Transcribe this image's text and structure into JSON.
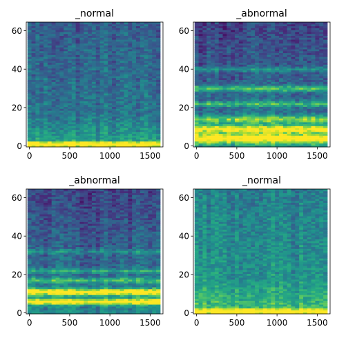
{
  "chart_data": [
    {
      "type": "heatmap",
      "title": "_normal",
      "x_ticks": [
        0,
        500,
        1000,
        1500
      ],
      "y_ticks": [
        0,
        20,
        40,
        60
      ],
      "xlim": [
        -40,
        1660
      ],
      "ylim": [
        -0.5,
        64.5
      ],
      "n_freq_bins": 65,
      "n_time_frames": 33,
      "colormap": "viridis",
      "grid": false,
      "pattern": "normal",
      "bands": [
        {
          "freq": 1,
          "strength": 1.0,
          "width": 1.2
        }
      ]
    },
    {
      "type": "heatmap",
      "title": "_abnormal",
      "x_ticks": [
        0,
        500,
        1000,
        1500
      ],
      "y_ticks": [
        0,
        20,
        40,
        60
      ],
      "xlim": [
        -40,
        1660
      ],
      "ylim": [
        -0.5,
        64.5
      ],
      "n_freq_bins": 65,
      "n_time_frames": 33,
      "colormap": "viridis",
      "grid": false,
      "pattern": "abnormal",
      "bands": [
        {
          "freq": 4,
          "strength": 0.95,
          "width": 2.5
        },
        {
          "freq": 9,
          "strength": 0.85,
          "width": 2.0
        },
        {
          "freq": 14,
          "strength": 0.6,
          "width": 2.0
        },
        {
          "freq": 22,
          "strength": 0.45,
          "width": 1.5
        },
        {
          "freq": 30,
          "strength": 0.55,
          "width": 1.5
        },
        {
          "freq": 40,
          "strength": 0.3,
          "width": 1.2
        }
      ]
    },
    {
      "type": "heatmap",
      "title": "_abnormal",
      "x_ticks": [
        0,
        500,
        1000,
        1500
      ],
      "y_ticks": [
        0,
        20,
        40,
        60
      ],
      "xlim": [
        -40,
        1660
      ],
      "ylim": [
        -0.5,
        64.5
      ],
      "n_freq_bins": 65,
      "n_time_frames": 33,
      "colormap": "viridis",
      "grid": false,
      "pattern": "abnormal",
      "bands": [
        {
          "freq": 6,
          "strength": 0.95,
          "width": 1.5
        },
        {
          "freq": 11,
          "strength": 1.0,
          "width": 1.8
        },
        {
          "freq": 17,
          "strength": 0.45,
          "width": 1.5
        },
        {
          "freq": 22,
          "strength": 0.35,
          "width": 1.2
        },
        {
          "freq": 32,
          "strength": 0.25,
          "width": 1.2
        }
      ]
    },
    {
      "type": "heatmap",
      "title": "_normal",
      "x_ticks": [
        0,
        500,
        1000,
        1500
      ],
      "y_ticks": [
        0,
        20,
        40,
        60
      ],
      "xlim": [
        -40,
        1660
      ],
      "ylim": [
        -0.5,
        64.5
      ],
      "n_freq_bins": 65,
      "n_time_frames": 33,
      "colormap": "viridis",
      "grid": false,
      "pattern": "normal-bright",
      "bands": [
        {
          "freq": 1,
          "strength": 1.0,
          "width": 1.0
        }
      ]
    }
  ]
}
